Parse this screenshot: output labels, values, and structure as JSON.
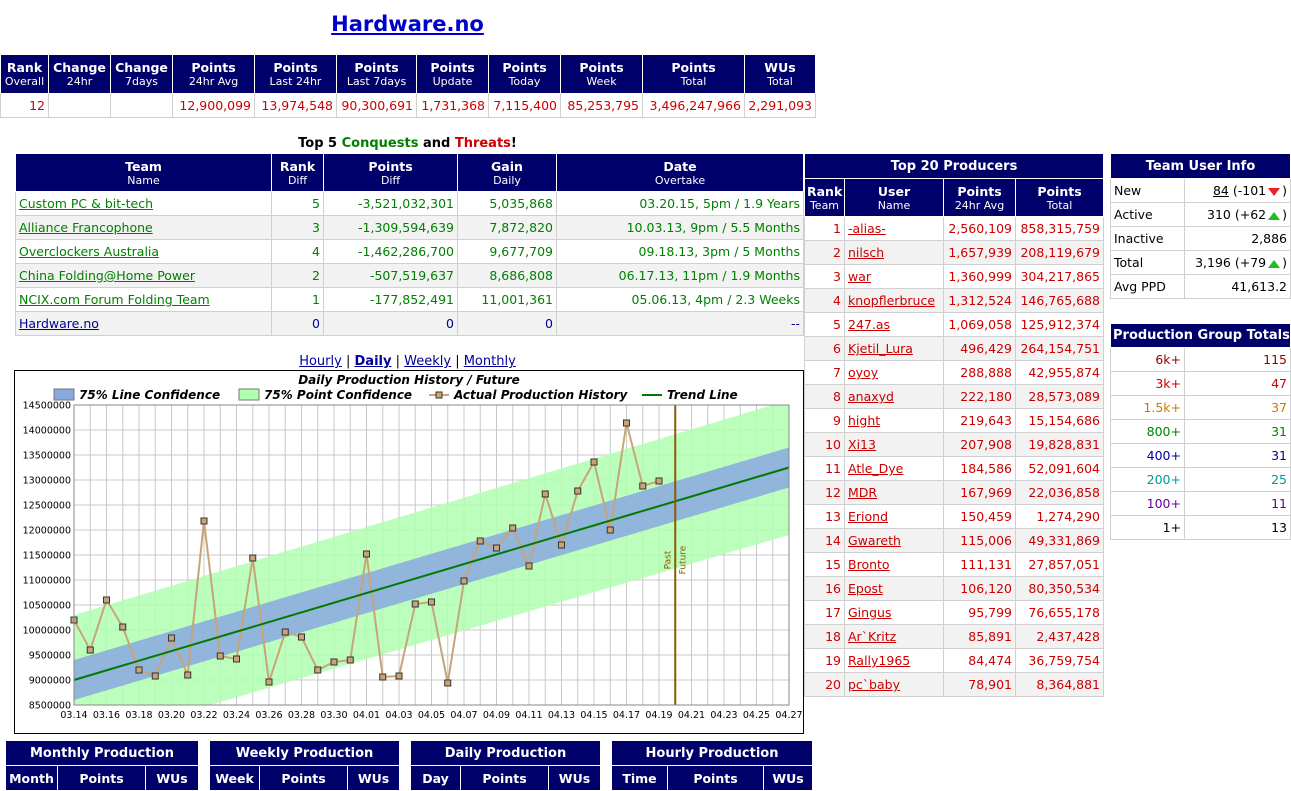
{
  "header": {
    "title": "Hardware.no"
  },
  "stats": {
    "columns": [
      [
        "Rank",
        "Overall"
      ],
      [
        "Change",
        "24hr"
      ],
      [
        "Change",
        "7days"
      ],
      [
        "Points",
        "24hr Avg"
      ],
      [
        "Points",
        "Last 24hr"
      ],
      [
        "Points",
        "Last 7days"
      ],
      [
        "Points",
        "Update"
      ],
      [
        "Points",
        "Today"
      ],
      [
        "Points",
        "Week"
      ],
      [
        "Points",
        "Total"
      ],
      [
        "WUs",
        "Total"
      ]
    ],
    "rows": [
      [
        "12",
        null,
        null,
        "12,900,099",
        "13,974,548",
        "90,300,691",
        "1,731,368",
        "7,115,400",
        "85,253,795",
        "3,496,247,966",
        "2,291,093"
      ]
    ]
  },
  "conquests": {
    "heading": [
      "Top 5 ",
      "Conquests",
      " and ",
      "Threats",
      "!"
    ],
    "heading_colors": [
      "#000000",
      "#008000",
      "#000000",
      "#cc0000",
      "#000000"
    ],
    "columns": [
      [
        "Team",
        "Name"
      ],
      [
        "Rank",
        "Diff"
      ],
      [
        "Points",
        "Diff"
      ],
      [
        "Gain",
        "Daily"
      ],
      [
        "Date",
        "Overtake"
      ]
    ],
    "rows": [
      [
        "Custom PC & bit-tech",
        "5",
        "-3,521,032,301",
        "5,035,868",
        "03.20.15, 5pm / 1.9 Years"
      ],
      [
        "Alliance Francophone",
        "3",
        "-1,309,594,639",
        "7,872,820",
        "10.03.13, 9pm / 5.5 Months"
      ],
      [
        "Overclockers Australia",
        "4",
        "-1,462,286,700",
        "9,677,709",
        "09.18.13, 3pm / 5 Months"
      ],
      [
        "China Folding@Home Power",
        "2",
        "-507,519,637",
        "8,686,808",
        "06.17.13, 11pm / 1.9 Months"
      ],
      [
        "NCIX.com Forum Folding Team",
        "1",
        "-177,852,491",
        "11,001,361",
        "05.06.13, 4pm / 2.3 Weeks"
      ],
      [
        "Hardware.no",
        "0",
        "0",
        "0",
        "--"
      ]
    ],
    "row_colors": [
      "#008000",
      "#008000",
      "#008000",
      "#008000",
      "#008000",
      "#000099"
    ]
  },
  "chart_nav": {
    "links": [
      "Hourly",
      "Daily",
      "Weekly",
      "Monthly"
    ],
    "active": "Daily",
    "separator": "|"
  },
  "chart_data": {
    "type": "line",
    "title": "Daily Production History / Future",
    "categories": [
      "03.14",
      null,
      "03.16",
      null,
      "03.18",
      null,
      "03.20",
      null,
      "03.22",
      null,
      "03.24",
      null,
      "03.26",
      null,
      "03.28",
      null,
      "03.30",
      null,
      "04.01",
      null,
      "04.03",
      null,
      "04.05",
      null,
      "04.07",
      null,
      "04.09",
      null,
      "04.11",
      null,
      "04.13",
      null,
      "04.15",
      null,
      "04.17",
      null,
      "04.19",
      null,
      "04.21",
      null,
      "04.23",
      null,
      "04.25",
      null,
      "04.27"
    ],
    "series": [
      {
        "name": "Actual Production History",
        "color": "#c8a478",
        "marker_color": "#c8a478",
        "values": [
          10200000,
          9600000,
          10600000,
          10060000,
          9200000,
          9080000,
          9840000,
          9100000,
          12180000,
          9480000,
          9420000,
          11440000,
          8960000,
          9960000,
          9860000,
          9200000,
          9360000,
          9400000,
          11520000,
          9060000,
          9080000,
          10520000,
          10560000,
          8940000,
          10980000,
          11780000,
          11640000,
          12040000,
          11280000,
          12720000,
          11700000,
          12780000,
          13360000,
          12000000,
          14140000,
          12880000,
          12980000,
          null,
          null,
          null,
          null,
          null,
          null,
          null,
          null
        ]
      },
      {
        "name": "Trend Line",
        "color": "#007a00",
        "x": [
          "03.14",
          "04.27"
        ],
        "values": [
          9000000,
          13250000
        ]
      }
    ],
    "bands": [
      {
        "name": "75% Point Confidence",
        "color": "#b0ffb0",
        "x": [
          "03.14",
          "04.27"
        ],
        "lower": [
          7700000,
          11900000
        ],
        "upper": [
          10300000,
          14600000
        ]
      },
      {
        "name": "75% Line Confidence",
        "color": "#8aa8e0",
        "x": [
          "03.14",
          "04.27"
        ],
        "lower": [
          8600000,
          12850000
        ],
        "upper": [
          9400000,
          13650000
        ]
      }
    ],
    "legend_order": [
      "75% Line Confidence",
      "75% Point Confidence",
      "Actual Production History",
      "Trend Line"
    ],
    "annotations": {
      "past": "Past",
      "future": "Future",
      "color": "#8b5a00"
    },
    "ylim": [
      8500000,
      14500000
    ],
    "yticks": [
      8500000,
      9000000,
      9500000,
      10000000,
      10500000,
      11000000,
      11500000,
      12000000,
      12500000,
      13000000,
      13500000,
      14000000,
      14500000
    ],
    "grid": true
  },
  "producers": {
    "title": "Top 20 Producers",
    "columns": [
      [
        "Rank",
        "Team"
      ],
      [
        "User",
        "Name"
      ],
      [
        "Points",
        "24hr Avg"
      ],
      [
        "Points",
        "Total"
      ]
    ],
    "rows": [
      [
        "1",
        "-alias-",
        "2,560,109",
        "858,315,759"
      ],
      [
        "2",
        "nilsch",
        "1,657,939",
        "208,119,679"
      ],
      [
        "3",
        "war",
        "1,360,999",
        "304,217,865"
      ],
      [
        "4",
        "knopflerbruce",
        "1,312,524",
        "146,765,688"
      ],
      [
        "5",
        "247.as",
        "1,069,058",
        "125,912,374"
      ],
      [
        "6",
        "Kjetil_Lura",
        "496,429",
        "264,154,751"
      ],
      [
        "7",
        "oyoy",
        "288,888",
        "42,955,874"
      ],
      [
        "8",
        "anaxyd",
        "222,180",
        "28,573,089"
      ],
      [
        "9",
        "hight",
        "219,643",
        "15,154,686"
      ],
      [
        "10",
        "Xi13",
        "207,908",
        "19,828,831"
      ],
      [
        "11",
        "Atle_Dye",
        "184,586",
        "52,091,604"
      ],
      [
        "12",
        "MDR",
        "167,969",
        "22,036,858"
      ],
      [
        "13",
        "Eriond",
        "150,459",
        "1,274,290"
      ],
      [
        "14",
        "Gwareth",
        "115,006",
        "49,331,869"
      ],
      [
        "15",
        "Bronto",
        "111,131",
        "27,857,051"
      ],
      [
        "16",
        "Epost",
        "106,120",
        "80,350,534"
      ],
      [
        "17",
        "Gingus",
        "95,799",
        "76,655,178"
      ],
      [
        "18",
        "Ar`Kritz",
        "85,891",
        "2,437,428"
      ],
      [
        "19",
        "Rally1965",
        "84,474",
        "36,759,754"
      ],
      [
        "20",
        "pc`baby",
        "78,901",
        "8,364,881"
      ]
    ]
  },
  "user_info": {
    "title": "Team User Info",
    "rows": [
      {
        "label": "New",
        "value": "84",
        "change": "(-101",
        "trend": "down",
        "close": ")"
      },
      {
        "label": "Active",
        "value": "310",
        "change": "(+62",
        "trend": "up",
        "close": ")"
      },
      {
        "label": "Inactive",
        "value": "2,886"
      },
      {
        "label": "Total",
        "value": "3,196",
        "change": "(+79",
        "trend": "up",
        "close": ")"
      },
      {
        "label": "Avg PPD",
        "value": "41,613.2"
      }
    ]
  },
  "group_totals": {
    "title": "Production Group Totals",
    "rows": [
      [
        "6k+",
        "115"
      ],
      [
        "3k+",
        "47"
      ],
      [
        "1.5k+",
        "37"
      ],
      [
        "800+",
        "31"
      ],
      [
        "400+",
        "31"
      ],
      [
        "200+",
        "25"
      ],
      [
        "100+",
        "11"
      ],
      [
        "1+",
        "13"
      ]
    ],
    "row_colors": [
      "#990000",
      "#cc0000",
      "#cc7a00",
      "#008000",
      "#000099",
      "#009999",
      "#660099",
      "#000000"
    ]
  },
  "monthly": {
    "title": "Monthly Production",
    "columns": [
      "Month",
      "Points",
      "WUs"
    ]
  },
  "weekly": {
    "title": "Weekly Production",
    "columns": [
      "Week",
      "Points",
      "WUs"
    ]
  },
  "daily": {
    "title": "Daily Production",
    "columns": [
      "Day",
      "Points",
      "WUs"
    ]
  },
  "hourly": {
    "title": "Hourly Production",
    "columns": [
      "Time",
      "Points",
      "WUs"
    ]
  }
}
